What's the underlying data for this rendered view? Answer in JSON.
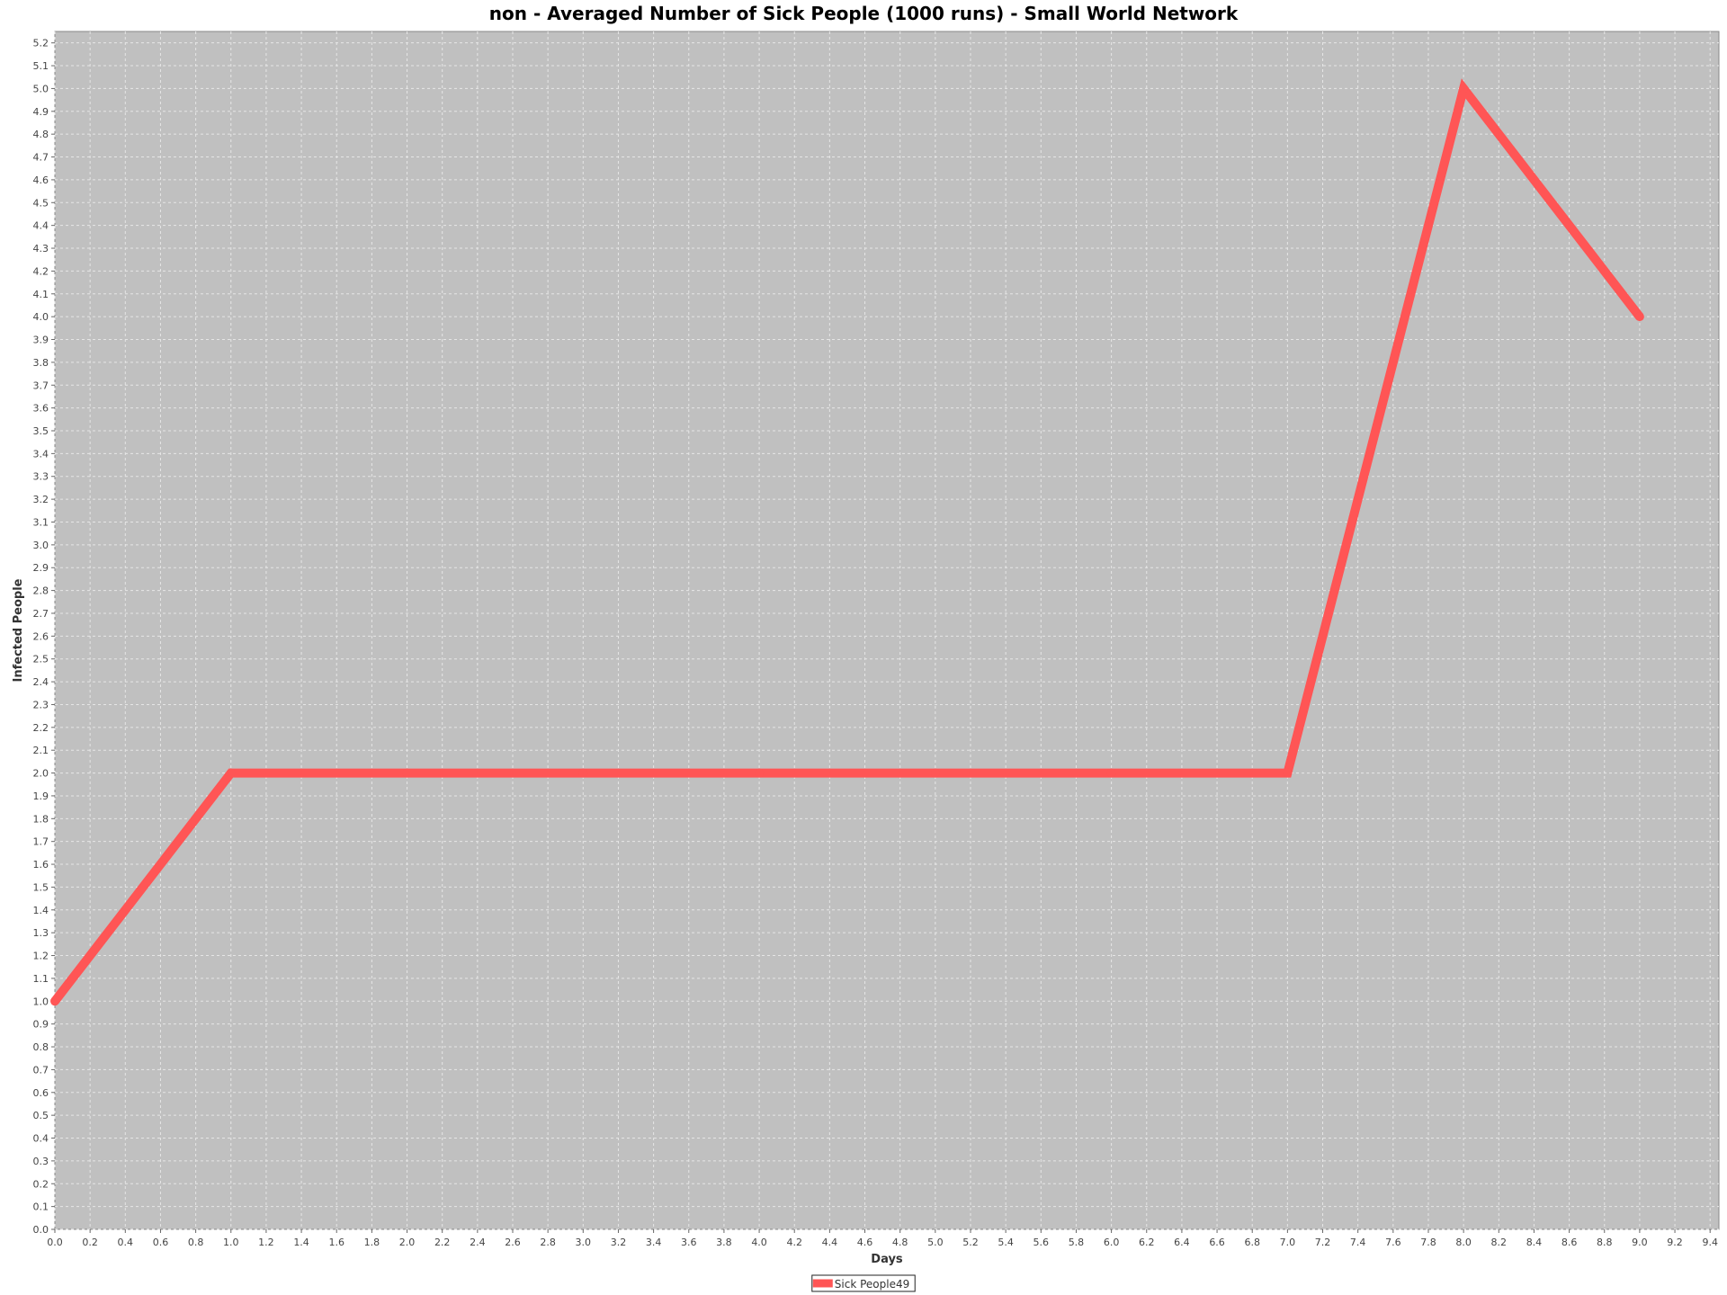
{
  "chart_data": {
    "type": "line",
    "title": "non - Averaged Number of Sick People (1000 runs) - Small World Network",
    "xlabel": "Days",
    "ylabel": "Infected People",
    "xlim": [
      0,
      9.45
    ],
    "ylim": [
      0,
      5.25
    ],
    "x_tick_step": 0.2,
    "y_tick_step": 0.1,
    "grid": true,
    "legend_position": "bottom-center",
    "plot_background": "#c0c0c0",
    "grid_color": "#e6e6e6",
    "series": [
      {
        "name": "Sick People49",
        "color": "#ff5555",
        "x": [
          0,
          1,
          2,
          3,
          4,
          5,
          6,
          7,
          8,
          9
        ],
        "y": [
          1.0,
          2.0,
          2.0,
          2.0,
          2.0,
          2.0,
          2.0,
          2.0,
          5.0,
          4.0
        ]
      }
    ]
  }
}
